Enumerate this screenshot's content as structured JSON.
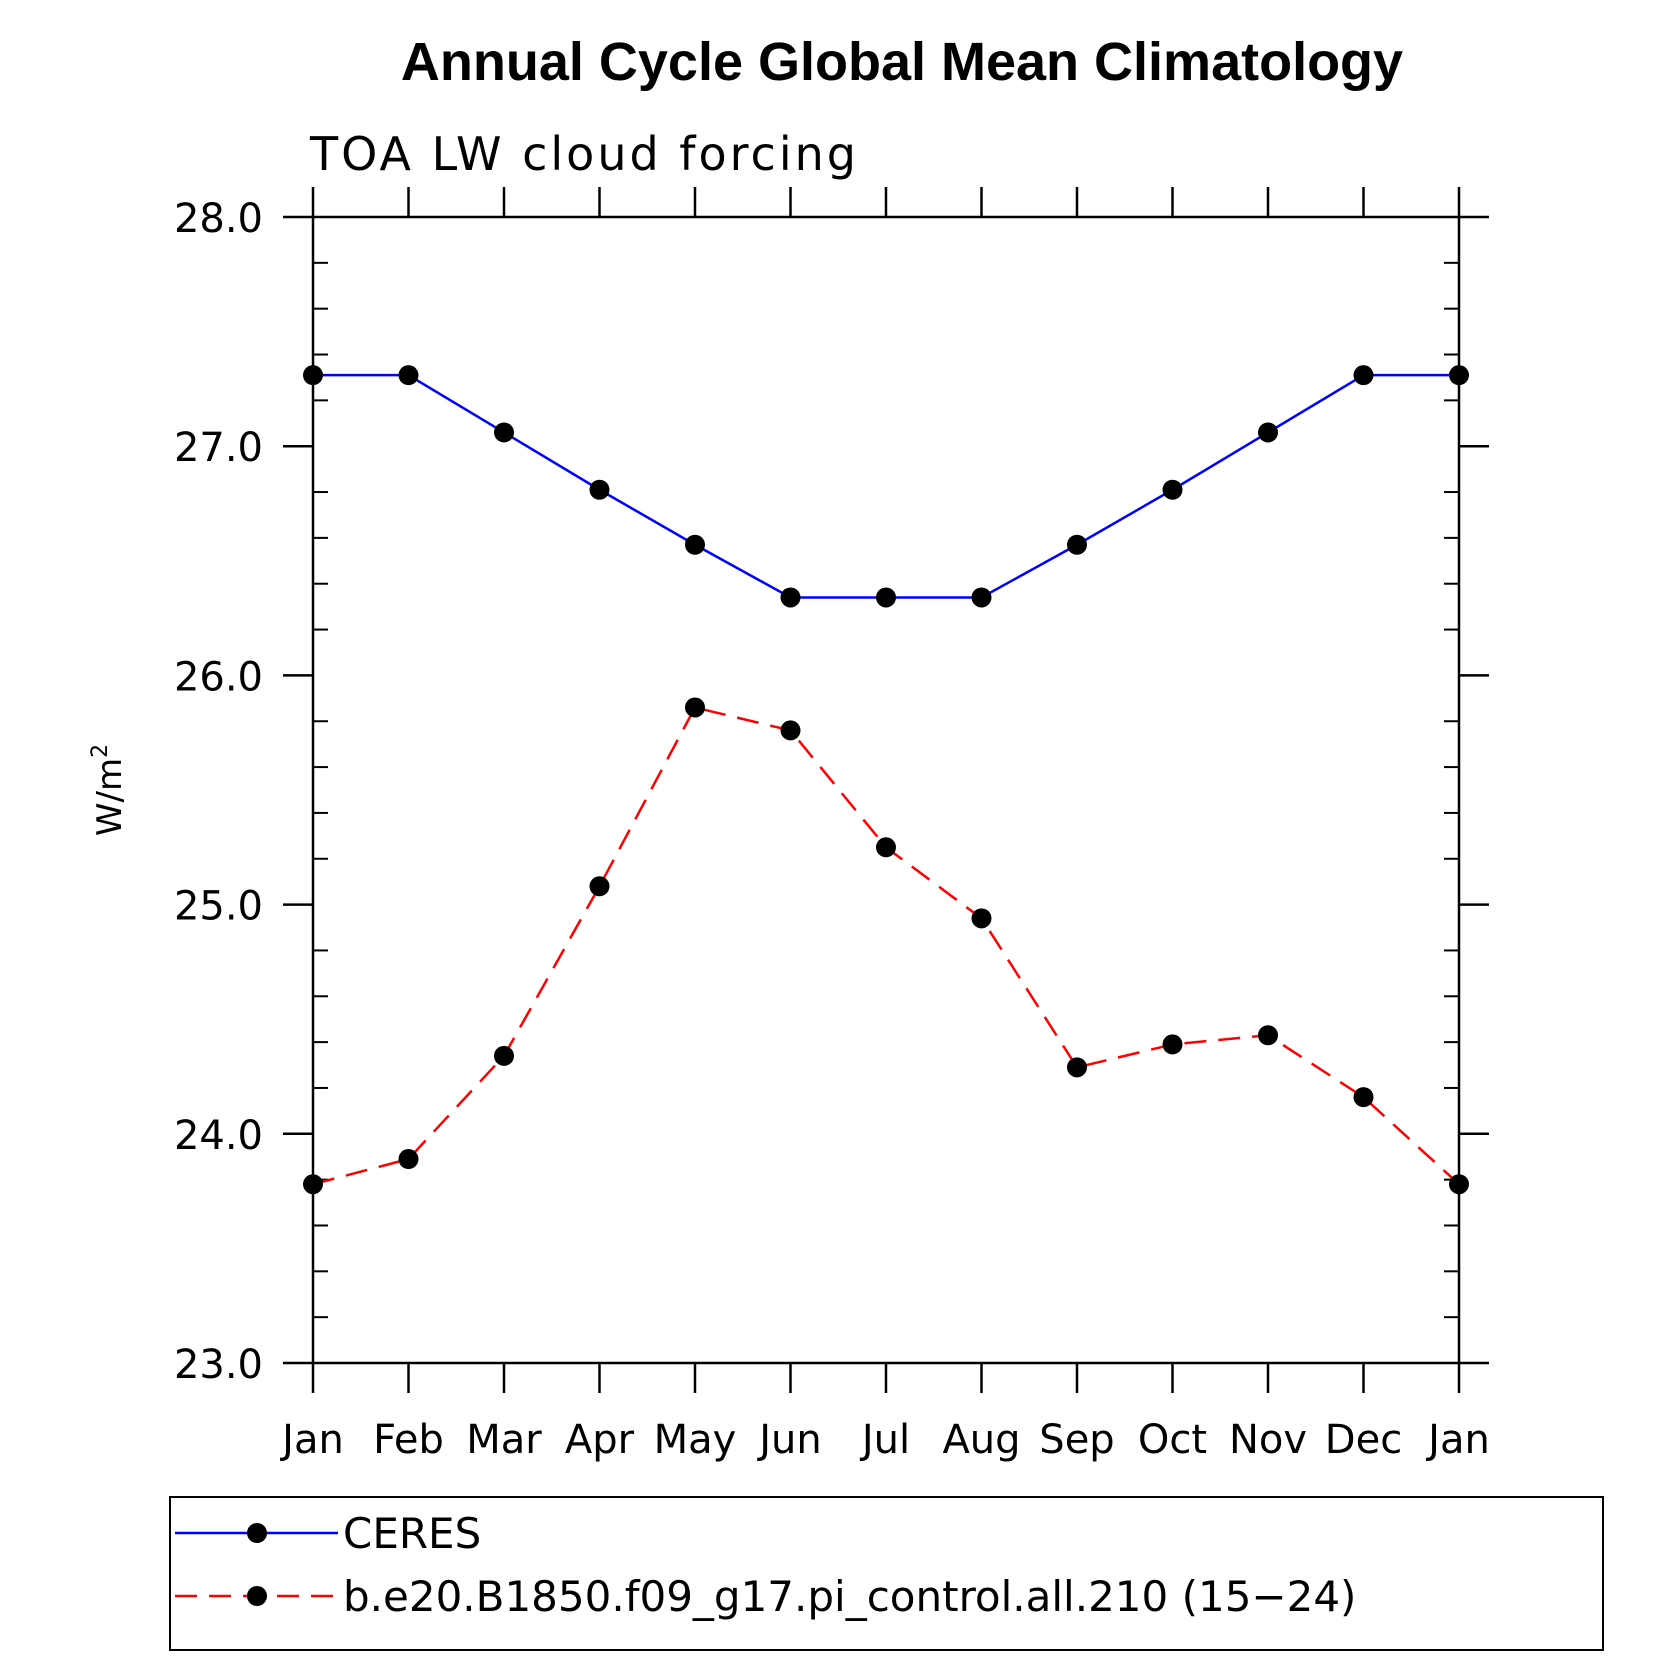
{
  "chart_data": {
    "type": "line",
    "title": "Annual Cycle Global Mean Climatology",
    "subtitle": "TOA LW cloud forcing",
    "ylabel_base": "W/m",
    "ylabel_sup": "2",
    "xlabel": "",
    "categories": [
      "Jan",
      "Feb",
      "Mar",
      "Apr",
      "May",
      "Jun",
      "Jul",
      "Aug",
      "Sep",
      "Oct",
      "Nov",
      "Dec",
      "Jan"
    ],
    "ylim": [
      23.0,
      28.0
    ],
    "yticks": [
      "23.0",
      "24.0",
      "25.0",
      "26.0",
      "27.0",
      "28.0"
    ],
    "grid": false,
    "legend_position": "bottom",
    "series": [
      {
        "name": "CERES",
        "color": "#0000ff",
        "style": "solid",
        "values": [
          27.31,
          27.31,
          27.06,
          26.81,
          26.57,
          26.34,
          26.34,
          26.34,
          26.57,
          26.81,
          27.06,
          27.31,
          27.31
        ]
      },
      {
        "name": "b.e20.B1850.f09_g17.pi_control.all.210 (15−24)",
        "color": "#ff0000",
        "style": "dashed",
        "values": [
          23.78,
          23.89,
          24.34,
          25.08,
          25.86,
          25.76,
          25.25,
          24.94,
          24.29,
          24.39,
          24.43,
          24.16,
          23.78
        ]
      }
    ]
  }
}
